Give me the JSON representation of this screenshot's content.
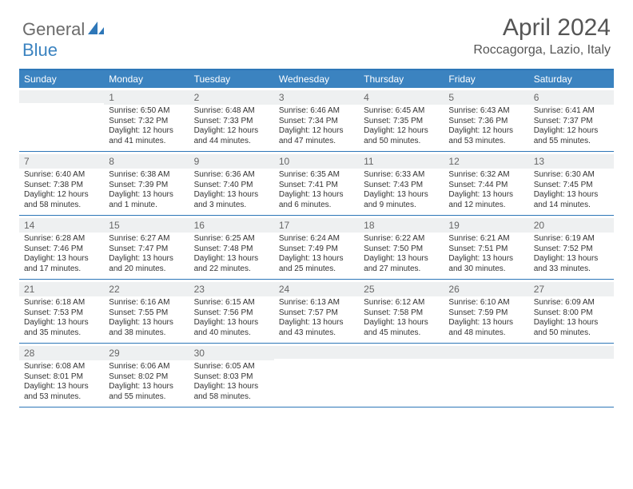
{
  "brand": {
    "general": "General",
    "blue": "Blue"
  },
  "title": "April 2024",
  "location": "Roccagorga, Lazio, Italy",
  "dayNames": [
    "Sunday",
    "Monday",
    "Tuesday",
    "Wednesday",
    "Thursday",
    "Friday",
    "Saturday"
  ],
  "colors": {
    "headerBlue": "#3b83c0",
    "borderBlue": "#2e77b8",
    "dayHeaderBg": "#eef0f1"
  },
  "weeks": [
    [
      {
        "blank": true
      },
      {
        "n": "1",
        "sr": "Sunrise: 6:50 AM",
        "ss": "Sunset: 7:32 PM",
        "d1": "Daylight: 12 hours",
        "d2": "and 41 minutes."
      },
      {
        "n": "2",
        "sr": "Sunrise: 6:48 AM",
        "ss": "Sunset: 7:33 PM",
        "d1": "Daylight: 12 hours",
        "d2": "and 44 minutes."
      },
      {
        "n": "3",
        "sr": "Sunrise: 6:46 AM",
        "ss": "Sunset: 7:34 PM",
        "d1": "Daylight: 12 hours",
        "d2": "and 47 minutes."
      },
      {
        "n": "4",
        "sr": "Sunrise: 6:45 AM",
        "ss": "Sunset: 7:35 PM",
        "d1": "Daylight: 12 hours",
        "d2": "and 50 minutes."
      },
      {
        "n": "5",
        "sr": "Sunrise: 6:43 AM",
        "ss": "Sunset: 7:36 PM",
        "d1": "Daylight: 12 hours",
        "d2": "and 53 minutes."
      },
      {
        "n": "6",
        "sr": "Sunrise: 6:41 AM",
        "ss": "Sunset: 7:37 PM",
        "d1": "Daylight: 12 hours",
        "d2": "and 55 minutes."
      }
    ],
    [
      {
        "n": "7",
        "sr": "Sunrise: 6:40 AM",
        "ss": "Sunset: 7:38 PM",
        "d1": "Daylight: 12 hours",
        "d2": "and 58 minutes."
      },
      {
        "n": "8",
        "sr": "Sunrise: 6:38 AM",
        "ss": "Sunset: 7:39 PM",
        "d1": "Daylight: 13 hours",
        "d2": "and 1 minute."
      },
      {
        "n": "9",
        "sr": "Sunrise: 6:36 AM",
        "ss": "Sunset: 7:40 PM",
        "d1": "Daylight: 13 hours",
        "d2": "and 3 minutes."
      },
      {
        "n": "10",
        "sr": "Sunrise: 6:35 AM",
        "ss": "Sunset: 7:41 PM",
        "d1": "Daylight: 13 hours",
        "d2": "and 6 minutes."
      },
      {
        "n": "11",
        "sr": "Sunrise: 6:33 AM",
        "ss": "Sunset: 7:43 PM",
        "d1": "Daylight: 13 hours",
        "d2": "and 9 minutes."
      },
      {
        "n": "12",
        "sr": "Sunrise: 6:32 AM",
        "ss": "Sunset: 7:44 PM",
        "d1": "Daylight: 13 hours",
        "d2": "and 12 minutes."
      },
      {
        "n": "13",
        "sr": "Sunrise: 6:30 AM",
        "ss": "Sunset: 7:45 PM",
        "d1": "Daylight: 13 hours",
        "d2": "and 14 minutes."
      }
    ],
    [
      {
        "n": "14",
        "sr": "Sunrise: 6:28 AM",
        "ss": "Sunset: 7:46 PM",
        "d1": "Daylight: 13 hours",
        "d2": "and 17 minutes."
      },
      {
        "n": "15",
        "sr": "Sunrise: 6:27 AM",
        "ss": "Sunset: 7:47 PM",
        "d1": "Daylight: 13 hours",
        "d2": "and 20 minutes."
      },
      {
        "n": "16",
        "sr": "Sunrise: 6:25 AM",
        "ss": "Sunset: 7:48 PM",
        "d1": "Daylight: 13 hours",
        "d2": "and 22 minutes."
      },
      {
        "n": "17",
        "sr": "Sunrise: 6:24 AM",
        "ss": "Sunset: 7:49 PM",
        "d1": "Daylight: 13 hours",
        "d2": "and 25 minutes."
      },
      {
        "n": "18",
        "sr": "Sunrise: 6:22 AM",
        "ss": "Sunset: 7:50 PM",
        "d1": "Daylight: 13 hours",
        "d2": "and 27 minutes."
      },
      {
        "n": "19",
        "sr": "Sunrise: 6:21 AM",
        "ss": "Sunset: 7:51 PM",
        "d1": "Daylight: 13 hours",
        "d2": "and 30 minutes."
      },
      {
        "n": "20",
        "sr": "Sunrise: 6:19 AM",
        "ss": "Sunset: 7:52 PM",
        "d1": "Daylight: 13 hours",
        "d2": "and 33 minutes."
      }
    ],
    [
      {
        "n": "21",
        "sr": "Sunrise: 6:18 AM",
        "ss": "Sunset: 7:53 PM",
        "d1": "Daylight: 13 hours",
        "d2": "and 35 minutes."
      },
      {
        "n": "22",
        "sr": "Sunrise: 6:16 AM",
        "ss": "Sunset: 7:55 PM",
        "d1": "Daylight: 13 hours",
        "d2": "and 38 minutes."
      },
      {
        "n": "23",
        "sr": "Sunrise: 6:15 AM",
        "ss": "Sunset: 7:56 PM",
        "d1": "Daylight: 13 hours",
        "d2": "and 40 minutes."
      },
      {
        "n": "24",
        "sr": "Sunrise: 6:13 AM",
        "ss": "Sunset: 7:57 PM",
        "d1": "Daylight: 13 hours",
        "d2": "and 43 minutes."
      },
      {
        "n": "25",
        "sr": "Sunrise: 6:12 AM",
        "ss": "Sunset: 7:58 PM",
        "d1": "Daylight: 13 hours",
        "d2": "and 45 minutes."
      },
      {
        "n": "26",
        "sr": "Sunrise: 6:10 AM",
        "ss": "Sunset: 7:59 PM",
        "d1": "Daylight: 13 hours",
        "d2": "and 48 minutes."
      },
      {
        "n": "27",
        "sr": "Sunrise: 6:09 AM",
        "ss": "Sunset: 8:00 PM",
        "d1": "Daylight: 13 hours",
        "d2": "and 50 minutes."
      }
    ],
    [
      {
        "n": "28",
        "sr": "Sunrise: 6:08 AM",
        "ss": "Sunset: 8:01 PM",
        "d1": "Daylight: 13 hours",
        "d2": "and 53 minutes."
      },
      {
        "n": "29",
        "sr": "Sunrise: 6:06 AM",
        "ss": "Sunset: 8:02 PM",
        "d1": "Daylight: 13 hours",
        "d2": "and 55 minutes."
      },
      {
        "n": "30",
        "sr": "Sunrise: 6:05 AM",
        "ss": "Sunset: 8:03 PM",
        "d1": "Daylight: 13 hours",
        "d2": "and 58 minutes."
      },
      {
        "blank": true
      },
      {
        "blank": true
      },
      {
        "blank": true
      },
      {
        "blank": true
      }
    ]
  ]
}
